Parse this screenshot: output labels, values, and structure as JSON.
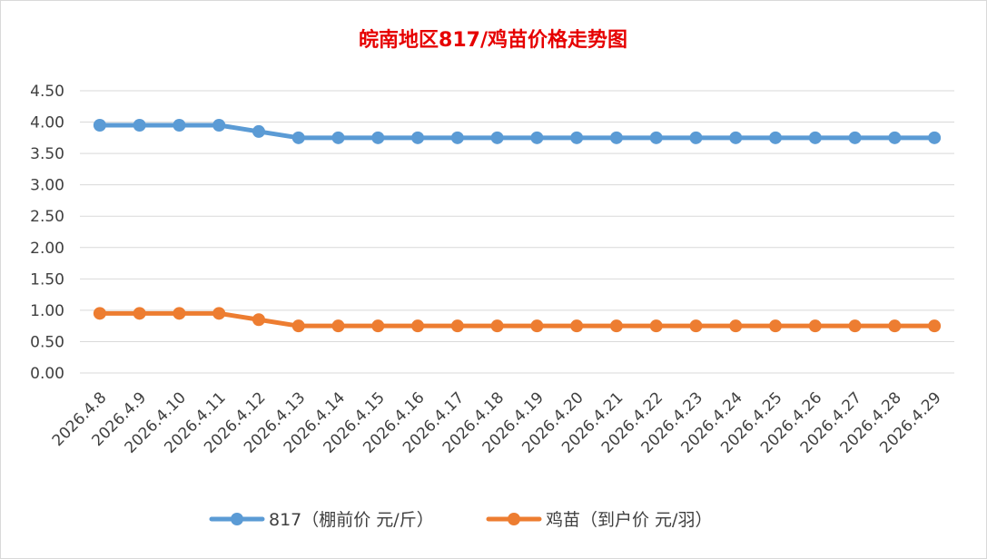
{
  "chart_data": {
    "type": "line",
    "title": "皖南地区817/鸡苗价格走势图",
    "xlabel": "",
    "ylabel": "",
    "ylim": [
      0,
      4.5
    ],
    "y_ticks": [
      "0.00",
      "0.50",
      "1.00",
      "1.50",
      "2.00",
      "2.50",
      "3.00",
      "3.50",
      "4.00",
      "4.50"
    ],
    "grid": true,
    "legend_position": "bottom",
    "categories": [
      "2026.4.8",
      "2026.4.9",
      "2026.4.10",
      "2026.4.11",
      "2026.4.12",
      "2026.4.13",
      "2026.4.14",
      "2026.4.15",
      "2026.4.16",
      "2026.4.17",
      "2026.4.18",
      "2026.4.19",
      "2026.4.20",
      "2026.4.21",
      "2026.4.22",
      "2026.4.23",
      "2026.4.24",
      "2026.4.25",
      "2026.4.26",
      "2026.4.27",
      "2026.4.28",
      "2026.4.29"
    ],
    "series": [
      {
        "name": "817（棚前价 元/斤）",
        "color": "#5b9bd5",
        "values": [
          3.95,
          3.95,
          3.95,
          3.95,
          3.85,
          3.75,
          3.75,
          3.75,
          3.75,
          3.75,
          3.75,
          3.75,
          3.75,
          3.75,
          3.75,
          3.75,
          3.75,
          3.75,
          3.75,
          3.75,
          3.75,
          3.75
        ]
      },
      {
        "name": "鸡苗（到户价 元/羽）",
        "color": "#ed7d31",
        "values": [
          0.95,
          0.95,
          0.95,
          0.95,
          0.85,
          0.75,
          0.75,
          0.75,
          0.75,
          0.75,
          0.75,
          0.75,
          0.75,
          0.75,
          0.75,
          0.75,
          0.75,
          0.75,
          0.75,
          0.75,
          0.75,
          0.75
        ]
      }
    ]
  }
}
